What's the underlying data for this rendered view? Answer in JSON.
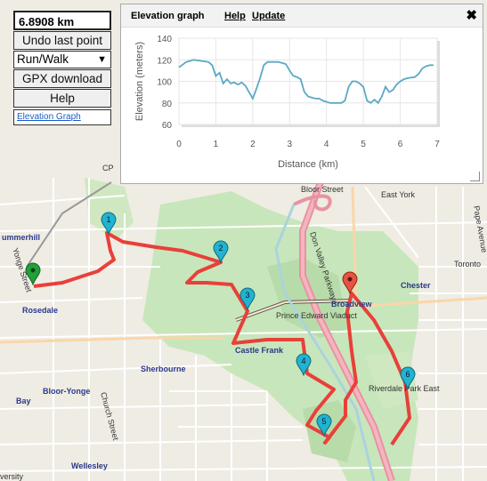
{
  "panel": {
    "distance": "6.8908 km",
    "undo_label": "Undo last point",
    "mode_value": "Run/Walk",
    "gpx_label": "GPX download",
    "help_label": "Help",
    "elev_link": "Elevation Graph"
  },
  "graph": {
    "title": "Elevation graph",
    "help": "Help",
    "update": "Update",
    "close": "✖"
  },
  "map_labels": {
    "summerhill": "ummerhill",
    "yonge": "Yonge Street",
    "rosedale": "Rosedale",
    "sherbourne": "Sherbourne",
    "bloor_yonge": "Bloor-Yonge",
    "bay": "Bay",
    "church": "Church Street",
    "wellesley": "Wellesley",
    "university": "versity",
    "castle_frank": "Castle Frank",
    "prince_edward": "Prince Edward Viaduct",
    "broadview": "Broadview",
    "chester": "Chester",
    "toronto": "Toronto",
    "bloor_street": "Bloor Street",
    "east_york": "East York",
    "riverdale": "Riverdale Park East",
    "dvp": "Don Valley Parkway",
    "pape": "Pape Avenue",
    "cp": "CP"
  },
  "markers": [
    "1",
    "2",
    "3",
    "4",
    "5",
    "6"
  ],
  "colors": {
    "route": "#e8403a",
    "marker": "#21b3d0",
    "start": "#22a03a",
    "end": "#e25544",
    "park": "#c8e6bb"
  },
  "chart_data": {
    "type": "line",
    "xlabel": "Distance (km)",
    "ylabel": "Elevation (meters)",
    "xlim": [
      0,
      7
    ],
    "ylim": [
      60,
      140
    ],
    "xticks": [
      0,
      1,
      2,
      3,
      4,
      5,
      6,
      7
    ],
    "yticks": [
      60,
      80,
      100,
      120,
      140
    ],
    "grid": true,
    "x": [
      0,
      0.2,
      0.4,
      0.6,
      0.8,
      0.9,
      1.0,
      1.1,
      1.2,
      1.3,
      1.4,
      1.5,
      1.6,
      1.7,
      1.8,
      1.9,
      2.0,
      2.1,
      2.2,
      2.3,
      2.4,
      2.5,
      2.6,
      2.7,
      2.8,
      2.9,
      3.0,
      3.1,
      3.2,
      3.3,
      3.4,
      3.5,
      3.6,
      3.7,
      3.8,
      3.9,
      4.0,
      4.1,
      4.2,
      4.3,
      4.4,
      4.5,
      4.6,
      4.7,
      4.8,
      4.9,
      5.0,
      5.1,
      5.2,
      5.3,
      5.4,
      5.5,
      5.6,
      5.7,
      5.8,
      5.9,
      6.0,
      6.1,
      6.2,
      6.4,
      6.5,
      6.6,
      6.7,
      6.8,
      6.9
    ],
    "y": [
      113,
      118,
      120,
      119,
      118,
      115,
      105,
      108,
      98,
      102,
      98,
      99,
      97,
      99,
      96,
      90,
      84,
      93,
      103,
      115,
      118,
      118,
      118,
      118,
      117,
      116,
      110,
      105,
      104,
      102,
      90,
      86,
      85,
      84,
      84,
      82,
      81,
      80,
      80,
      80,
      80,
      82,
      95,
      100,
      100,
      98,
      95,
      82,
      80,
      83,
      80,
      86,
      95,
      90,
      92,
      97,
      100,
      102,
      103,
      104,
      107,
      112,
      114,
      115,
      115
    ]
  }
}
